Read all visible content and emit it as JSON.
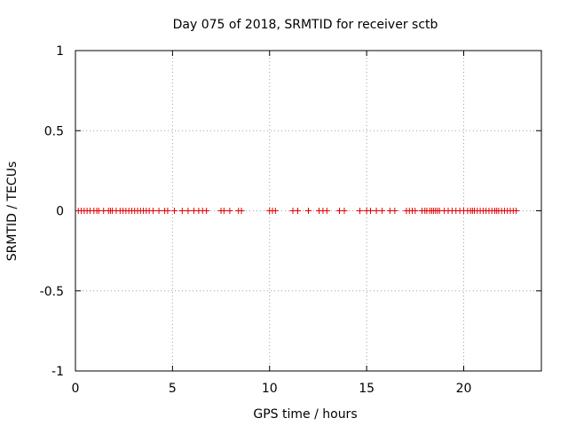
{
  "chart_data": {
    "type": "scatter",
    "title": "Day 075 of 2018, SRMTID for receiver sctb",
    "xlabel": "GPS time / hours",
    "ylabel": "SRMTID / TECUs",
    "xlim": [
      0,
      24
    ],
    "ylim": [
      -1,
      1
    ],
    "grid": true,
    "marker": "+",
    "marker_color": "#e00000",
    "xticks": [
      0,
      5,
      10,
      15,
      20
    ],
    "xtick_labels": [
      "0",
      "5",
      "10",
      "15",
      "20"
    ],
    "yticks": [
      1,
      0.5,
      0,
      -0.5,
      -1
    ],
    "ytick_labels": [
      "1",
      "0.5",
      "0",
      "-0.5",
      "-1"
    ],
    "series": [
      {
        "name": "SRMTID",
        "x": [
          0.15,
          0.3,
          0.45,
          0.6,
          0.75,
          0.95,
          1.1,
          1.2,
          1.45,
          1.7,
          1.8,
          1.9,
          2.1,
          2.3,
          2.45,
          2.6,
          2.75,
          2.9,
          3.05,
          3.2,
          3.35,
          3.5,
          3.65,
          3.8,
          4.0,
          4.3,
          4.6,
          4.75,
          5.1,
          5.5,
          5.8,
          6.1,
          6.35,
          6.55,
          6.75,
          7.5,
          7.65,
          7.95,
          8.4,
          8.55,
          10.0,
          10.15,
          10.3,
          11.2,
          11.45,
          12.0,
          12.55,
          12.75,
          12.95,
          13.6,
          13.85,
          14.65,
          15.0,
          15.2,
          15.5,
          15.8,
          16.2,
          16.45,
          17.05,
          17.2,
          17.35,
          17.5,
          17.85,
          18.0,
          18.1,
          18.25,
          18.35,
          18.45,
          18.55,
          18.65,
          18.75,
          19.0,
          19.2,
          19.4,
          19.6,
          19.8,
          20.0,
          20.2,
          20.35,
          20.45,
          20.55,
          20.7,
          20.85,
          21.0,
          21.15,
          21.3,
          21.45,
          21.6,
          21.7,
          21.8,
          21.95,
          22.1,
          22.25,
          22.4,
          22.55,
          22.7
        ],
        "y": [
          0,
          0,
          0,
          0,
          0,
          0,
          0,
          0,
          0,
          0,
          0,
          0,
          0,
          0,
          0,
          0,
          0,
          0,
          0,
          0,
          0,
          0,
          0,
          0,
          0,
          0,
          0,
          0,
          0,
          0,
          0,
          0,
          0,
          0,
          0,
          0,
          0,
          0,
          0,
          0,
          0,
          0,
          0,
          0,
          0,
          0,
          0,
          0,
          0,
          0,
          0,
          0,
          0,
          0,
          0,
          0,
          0,
          0,
          0,
          0,
          0,
          0,
          0,
          0,
          0,
          0,
          0,
          0,
          0,
          0,
          0,
          0,
          0,
          0,
          0,
          0,
          0,
          0,
          0,
          0,
          0,
          0,
          0,
          0,
          0,
          0,
          0,
          0,
          0,
          0,
          0,
          0,
          0,
          0,
          0,
          0
        ]
      }
    ]
  }
}
